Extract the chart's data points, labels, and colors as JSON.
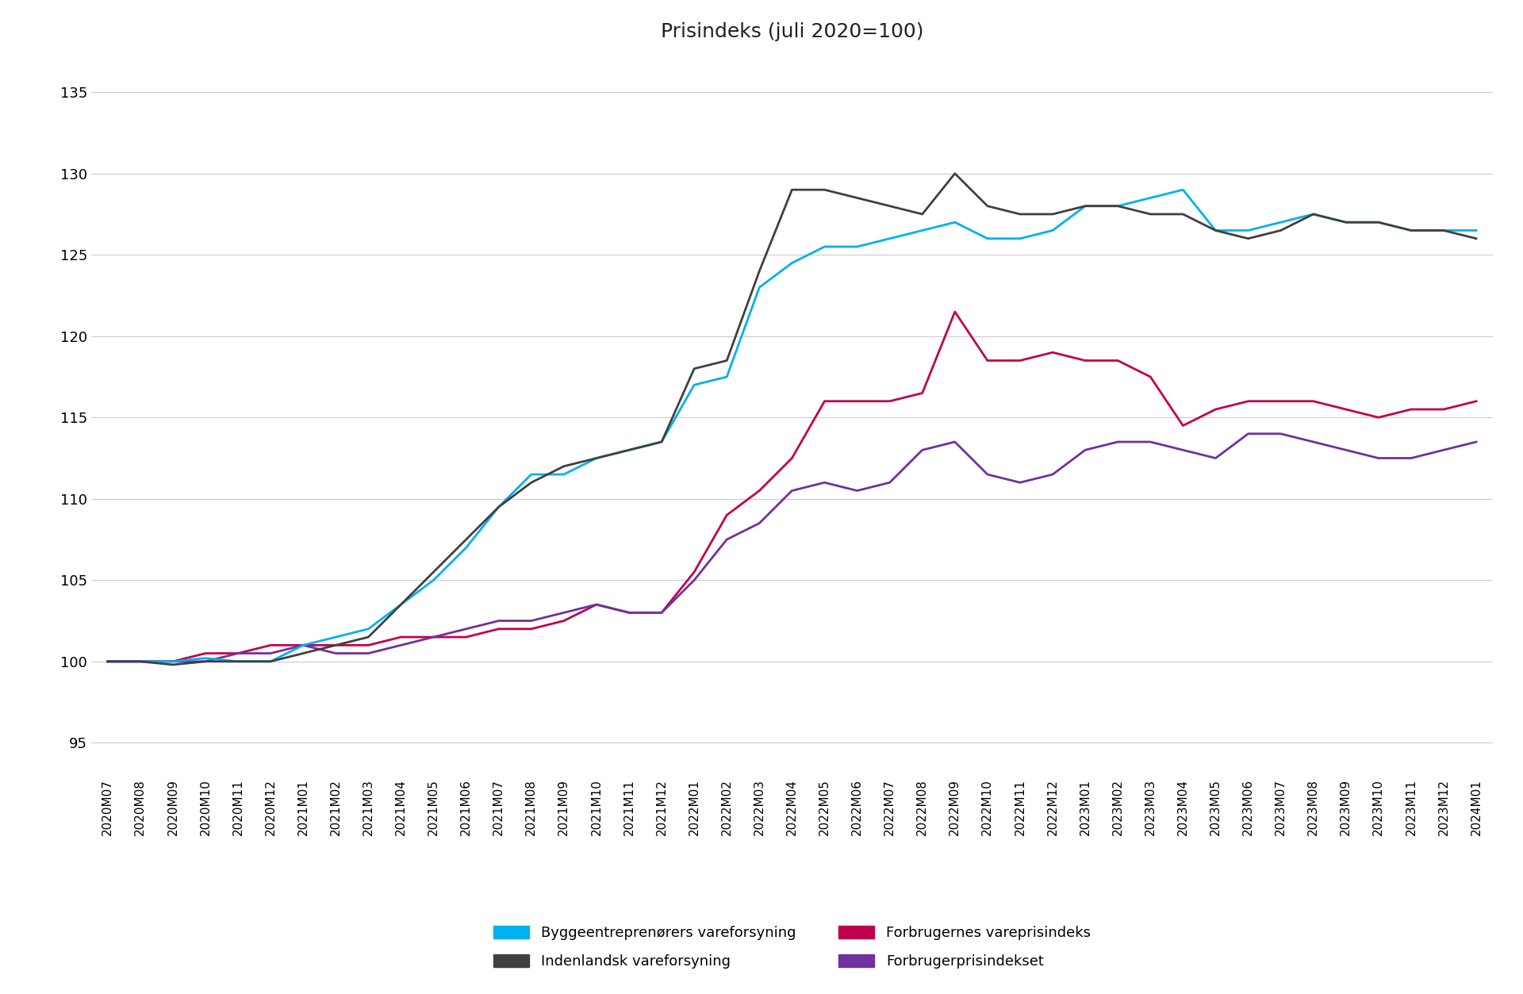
{
  "title": "Prisindeks (juli 2020=100)",
  "xlabels": [
    "2020M07",
    "2020M08",
    "2020M09",
    "2020M10",
    "2020M11",
    "2020M12",
    "2021M01",
    "2021M02",
    "2021M03",
    "2021M04",
    "2021M05",
    "2021M06",
    "2021M07",
    "2021M08",
    "2021M09",
    "2021M10",
    "2021M11",
    "2021M12",
    "2022M01",
    "2022M02",
    "2022M03",
    "2022M04",
    "2022M05",
    "2022M06",
    "2022M07",
    "2022M08",
    "2022M09",
    "2022M10",
    "2022M11",
    "2022M12",
    "2023M01",
    "2023M02",
    "2023M03",
    "2023M04",
    "2023M05",
    "2023M06",
    "2023M07",
    "2023M08",
    "2023M09",
    "2023M10",
    "2023M11",
    "2023M12",
    "2024M01"
  ],
  "byggeentreprenorer": [
    100.0,
    100.0,
    100.0,
    100.2,
    100.0,
    100.0,
    101.0,
    101.5,
    102.0,
    103.5,
    105.0,
    107.0,
    109.5,
    111.5,
    111.5,
    112.5,
    113.0,
    113.5,
    117.0,
    117.5,
    123.0,
    124.5,
    125.5,
    125.5,
    126.0,
    126.5,
    127.0,
    126.0,
    126.0,
    126.5,
    128.0,
    128.0,
    128.5,
    129.0,
    126.5,
    126.5,
    127.0,
    127.5,
    127.0,
    127.0,
    126.5,
    126.5,
    126.5
  ],
  "indenlandsk": [
    100.0,
    100.0,
    99.8,
    100.0,
    100.0,
    100.0,
    100.5,
    101.0,
    101.5,
    103.5,
    105.5,
    107.5,
    109.5,
    111.0,
    112.0,
    112.5,
    113.0,
    113.5,
    118.0,
    118.5,
    124.0,
    129.0,
    129.0,
    128.5,
    128.0,
    127.5,
    130.0,
    128.0,
    127.5,
    127.5,
    128.0,
    128.0,
    127.5,
    127.5,
    126.5,
    126.0,
    126.5,
    127.5,
    127.0,
    127.0,
    126.5,
    126.5,
    126.0
  ],
  "forbrugernes_vare": [
    100.0,
    100.0,
    100.0,
    100.5,
    100.5,
    101.0,
    101.0,
    101.0,
    101.0,
    101.5,
    101.5,
    101.5,
    102.0,
    102.0,
    102.5,
    103.5,
    103.0,
    103.0,
    105.5,
    109.0,
    110.5,
    112.5,
    116.0,
    116.0,
    116.0,
    116.5,
    121.5,
    118.5,
    118.5,
    119.0,
    118.5,
    118.5,
    117.5,
    114.5,
    115.5,
    116.0,
    116.0,
    116.0,
    115.5,
    115.0,
    115.5,
    115.5,
    116.0
  ],
  "forbrugerprisindekset": [
    100.0,
    100.0,
    100.0,
    100.0,
    100.5,
    100.5,
    101.0,
    100.5,
    100.5,
    101.0,
    101.5,
    102.0,
    102.5,
    102.5,
    103.0,
    103.5,
    103.0,
    103.0,
    105.0,
    107.5,
    108.5,
    110.5,
    111.0,
    110.5,
    111.0,
    113.0,
    113.5,
    111.5,
    111.0,
    111.5,
    113.0,
    113.5,
    113.5,
    113.0,
    112.5,
    114.0,
    114.0,
    113.5,
    113.0,
    112.5,
    112.5,
    113.0,
    113.5
  ],
  "line_colors": {
    "byggeentreprenorer": "#00B0F0",
    "indenlandsk": "#404040",
    "forbrugernes_vare": "#C0004F",
    "forbrugerprisindekset": "#7030A0"
  },
  "legend_labels": {
    "byggeentreprenorer": "Byggeentreprenørers vareforsyning",
    "indenlandsk": "Indenlandsk vareforsyning",
    "forbrugernes_vare": "Forbrugernes vareprisindeks",
    "forbrugerprisindekset": "Forbrugerprisindekset"
  },
  "ylim": [
    93,
    137
  ],
  "yticks": [
    95,
    100,
    105,
    110,
    115,
    120,
    125,
    130,
    135
  ],
  "background_color": "#FFFFFF",
  "title_fontsize": 18,
  "tick_fontsize": 13,
  "xtick_fontsize": 11,
  "line_width": 2.0
}
